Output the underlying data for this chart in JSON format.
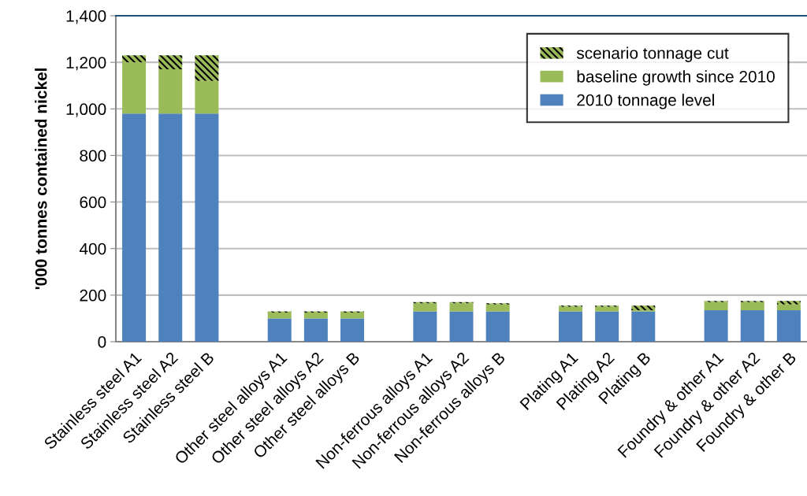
{
  "chart_data": {
    "type": "bar",
    "stacked": true,
    "ylabel": "'000 tonnes contained nickel",
    "categories": [
      "Stainless steel A1",
      "Stainless steel A2",
      "Stainless steel B",
      null,
      "Other steel alloys A1",
      "Other steel alloys A2",
      "Other steel alloys B",
      null,
      "Non-ferrous alloys A1",
      "Non-ferrous alloys A2",
      "Non-ferrous alloys B",
      null,
      "Plating A1",
      "Plating A2",
      "Plating B",
      null,
      "Foundry & other A1",
      "Foundry & other A2",
      "Foundry & other B"
    ],
    "series": [
      {
        "name": "2010 tonnage level",
        "color": "#4f81bd",
        "values": [
          980,
          980,
          980,
          null,
          100,
          100,
          100,
          null,
          130,
          130,
          130,
          null,
          130,
          130,
          130,
          null,
          135,
          135,
          135
        ]
      },
      {
        "name": "baseline growth since 2010",
        "color": "#9bbb59",
        "values": [
          220,
          190,
          140,
          null,
          25,
          25,
          25,
          null,
          35,
          35,
          30,
          null,
          20,
          20,
          5,
          null,
          35,
          35,
          25
        ]
      },
      {
        "name": "scenario tonnage cut",
        "color": "#000000",
        "values": [
          30,
          60,
          110,
          null,
          5,
          5,
          5,
          null,
          5,
          5,
          5,
          null,
          5,
          5,
          20,
          null,
          5,
          5,
          15
        ]
      }
    ],
    "ylim": [
      0,
      1400
    ],
    "yticks": [
      {
        "value": 0,
        "label": "0"
      },
      {
        "value": 200,
        "label": "200"
      },
      {
        "value": 400,
        "label": "400"
      },
      {
        "value": 600,
        "label": "600"
      },
      {
        "value": 800,
        "label": "800"
      },
      {
        "value": 1000,
        "label": "1,000"
      },
      {
        "value": 1200,
        "label": "1,200"
      },
      {
        "value": 1400,
        "label": "1,400"
      }
    ],
    "grid": "y",
    "legend": "top right"
  }
}
